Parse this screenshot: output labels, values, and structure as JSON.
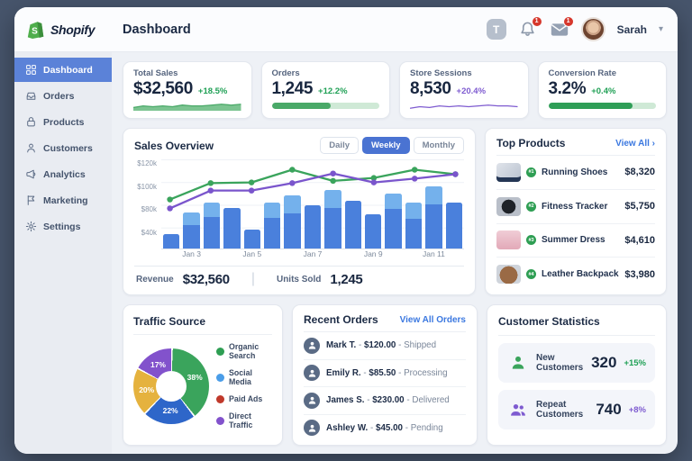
{
  "header": {
    "brand": "Shopify",
    "title": "Dashboard",
    "support_icon_glyph": "T",
    "bell_badge": "1",
    "mail_badge": "1",
    "user_name": "Sarah",
    "chevron": "⌄"
  },
  "sidebar": {
    "active": "Dashboard",
    "items": [
      {
        "label": "Dashboard"
      },
      {
        "label": "Orders"
      },
      {
        "label": "Products"
      },
      {
        "label": "Customers"
      },
      {
        "label": "Analytics"
      },
      {
        "label": "Marketing"
      },
      {
        "label": "Settings"
      }
    ]
  },
  "kpis": [
    {
      "label": "Total Sales",
      "value": "$32,560",
      "delta": "+18.5%",
      "delta_style": "color:#1fa055",
      "viz": "area",
      "color": "#4aa968",
      "fill": "#7cc491",
      "points": [
        4,
        6,
        5,
        6,
        5,
        7,
        6,
        6,
        7,
        8,
        7,
        8
      ]
    },
    {
      "label": "Orders",
      "value": "1,245",
      "delta": "+12.2%",
      "delta_style": "color:#1fa055",
      "viz": "bar",
      "color": "#4aa968",
      "track_style": "background:#cfe9d6",
      "progress": 0.55
    },
    {
      "label": "Store Sessions",
      "value": "8,530",
      "delta": "+20.4%",
      "delta_style": "color:#7e5bd0",
      "viz": "line",
      "color": "#7e5bd0",
      "points": [
        3,
        5,
        4,
        6,
        5,
        6,
        5,
        6,
        7,
        6,
        6,
        5
      ]
    },
    {
      "label": "Conversion Rate",
      "value": "3.2%",
      "delta": "+0.4%",
      "delta_style": "color:#1fa055",
      "viz": "bar",
      "color": "#2f9e57",
      "track_style": "background:#cfe9d6",
      "progress": 0.78
    }
  ],
  "sales_overview": {
    "title": "Sales Overview",
    "tabs": [
      {
        "label": "Daily"
      },
      {
        "label": "Weekly"
      },
      {
        "label": "Monthly"
      }
    ],
    "active_tab": "Weekly",
    "footer": {
      "revenue_label": "Revenue",
      "revenue_value": "$32,560",
      "divider": "|",
      "units_label": "Units Sold",
      "units_value": "1,245"
    }
  },
  "chart_data": [
    {
      "type": "bar",
      "title": "Sales Overview ($k, Jan 1–11)",
      "x_labels": [
        "Jan 3",
        "Jan 5",
        "Jan 7",
        "Jan 9",
        "Jan 11"
      ],
      "y_tick_labels": [
        "$120k",
        "$100k",
        "$80k",
        "$40k"
      ],
      "ylim": [
        0,
        120
      ],
      "grid": true,
      "bar_totals_k": [
        20,
        48,
        62,
        55,
        25,
        62,
        72,
        58,
        79,
        64,
        46,
        74,
        62,
        84,
        62
      ],
      "bar_dark_k": [
        20,
        31,
        42,
        55,
        25,
        41,
        47,
        58,
        54,
        64,
        46,
        53,
        40,
        59,
        62
      ],
      "bar_colors": {
        "dark": "#4a80dc",
        "light": "#74b1ec"
      },
      "series": [
        {
          "name": "green-line",
          "color": "#3aa45c",
          "values_k": [
            66,
            88,
            89,
            106,
            91,
            95,
            106,
            100
          ]
        },
        {
          "name": "purple-line",
          "color": "#7a55cc",
          "values_k": [
            54,
            78,
            78,
            88,
            101,
            89,
            94,
            100
          ]
        }
      ]
    },
    {
      "type": "pie",
      "title": "Traffic Source",
      "labels": [
        "Organic Search",
        "Social Media",
        "Paid Ads",
        "Direct Traffic"
      ],
      "values": [
        38,
        22,
        20,
        17
      ],
      "slice_colors": [
        "#3aa45c",
        "#2e66c9",
        "#e5b23e",
        "#8252cc"
      ],
      "legend_dot_styles": [
        "background:#2e9e53",
        "background:#4a9de8",
        "background:#c0392b",
        "background:#8252cc"
      ],
      "legend_position": "right"
    }
  ],
  "top_products": {
    "title": "Top Products",
    "link": "View All ›",
    "items": [
      {
        "rank": "#1",
        "name": "Running Shoes",
        "price": "$8,320",
        "thumb_style": "background:linear-gradient(135deg,#dfe3ea 0%,#b9c2cf 100%);box-shadow:inset 0 -7px 0 -2px #243654"
      },
      {
        "rank": "#2",
        "name": "Fitness Tracker",
        "price": "$5,750",
        "thumb_style": "background:radial-gradient(circle at 50% 50%,#1e2228 0 45%,#b9bfc9 46%)"
      },
      {
        "rank": "#3",
        "name": "Summer Dress",
        "price": "$4,610",
        "thumb_style": "background:linear-gradient(180deg,#f0cdd6 0%,#e2a9b8 100%)"
      },
      {
        "rank": "#4",
        "name": "Leather Backpack",
        "price": "$3,980",
        "thumb_style": "background:radial-gradient(circle at 50% 55%,#9a6a45 0 55%,#cfd4db 56%)"
      }
    ]
  },
  "traffic": {
    "title": "Traffic Source"
  },
  "recent_orders": {
    "title": "Recent Orders",
    "link": "View All Orders",
    "items": [
      {
        "name": "Mark T.",
        "sep1": "-",
        "amount": "$120.00",
        "sep2": "-",
        "status": "Shipped"
      },
      {
        "name": "Emily R.",
        "sep1": "-",
        "amount": "$85.50",
        "sep2": "-",
        "status": "Processing"
      },
      {
        "name": "James S.",
        "sep1": "-",
        "amount": "$230.00",
        "sep2": "-",
        "status": "Delivered"
      },
      {
        "name": "Ashley W.",
        "sep1": "-",
        "amount": "$45.00",
        "sep2": "-",
        "status": "Pending"
      }
    ]
  },
  "customer_stats": {
    "title": "Customer Statistics",
    "rows": [
      {
        "label": "New Customers",
        "value": "320",
        "delta": "+15%",
        "delta_style": "color:#1fa055",
        "icon_color": "#3aa45c"
      },
      {
        "label": "Repeat Customers",
        "value": "740",
        "delta": "+8%",
        "delta_style": "color:#7e5bd0",
        "icon_color": "#7e5bd0"
      }
    ]
  }
}
